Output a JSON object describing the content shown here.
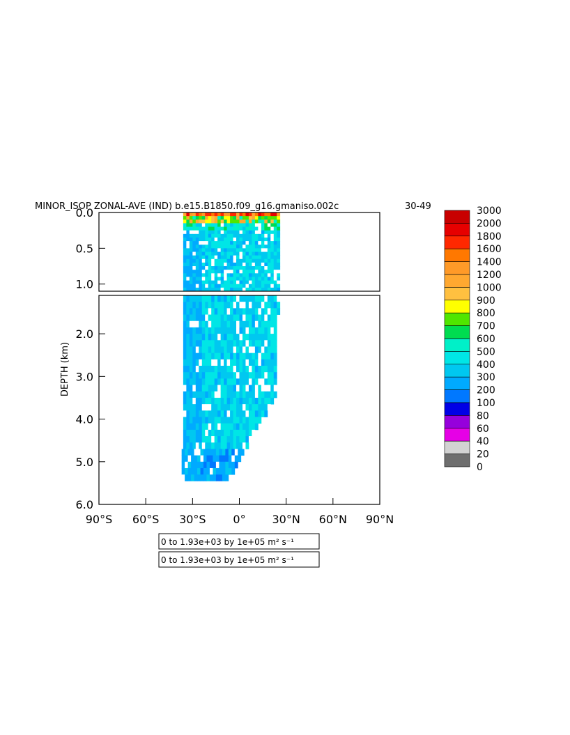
{
  "chart_data": {
    "type": "heatmap",
    "title": "MINOR_ISOP ZONAL-AVE (IND) b.e15.B1850.f09_g16.gmaniso.002c",
    "year_range": "30-49",
    "ylabel": "DEPTH (km)",
    "xlabel": "",
    "x_ticks": [
      "90°S",
      "60°S",
      "30°S",
      "0°",
      "30°N",
      "60°N",
      "90°N"
    ],
    "x_tick_values": [
      -90,
      -60,
      -30,
      0,
      30,
      60,
      90
    ],
    "xlim": [
      -90,
      90
    ],
    "y_ticks_upper": [
      "0.0",
      "0.5",
      "1.0"
    ],
    "y_tick_values_upper": [
      0.0,
      0.5,
      1.0
    ],
    "ylim_upper": [
      0.0,
      1.1
    ],
    "y_ticks_lower": [
      "2.0",
      "3.0",
      "4.0",
      "5.0",
      "6.0"
    ],
    "y_tick_values_lower": [
      2.0,
      3.0,
      4.0,
      5.0,
      6.0
    ],
    "ylim_lower": [
      1.1,
      6.0
    ],
    "colorbar": {
      "levels": [
        "3000",
        "2000",
        "1800",
        "1600",
        "1400",
        "1200",
        "1000",
        "900",
        "800",
        "700",
        "600",
        "500",
        "400",
        "300",
        "200",
        "100",
        "80",
        "60",
        "40",
        "20",
        "0"
      ],
      "colors": [
        "#c80000",
        "#e60000",
        "#ff2800",
        "#ff7800",
        "#ff9a28",
        "#ffa830",
        "#ffc040",
        "#ffff00",
        "#50e600",
        "#00dc50",
        "#00f0c8",
        "#00e6e6",
        "#00c8f0",
        "#00aaff",
        "#0078ff",
        "#0000e6",
        "#9600dc",
        "#e600e6",
        "#d2d2d2",
        "#6e6e6e"
      ]
    },
    "field_summary": {
      "lat_extent": [
        -36,
        25
      ],
      "max_depth_km": 5.35,
      "surface_max_approx": 2000,
      "interior_typical_range": [
        200,
        500
      ]
    },
    "info_box_1": "0 to 1.93e+03 by 1e+05 m² s⁻¹",
    "info_box_2": "0 to 1.93e+03 by 1e+05 m² s⁻¹"
  }
}
